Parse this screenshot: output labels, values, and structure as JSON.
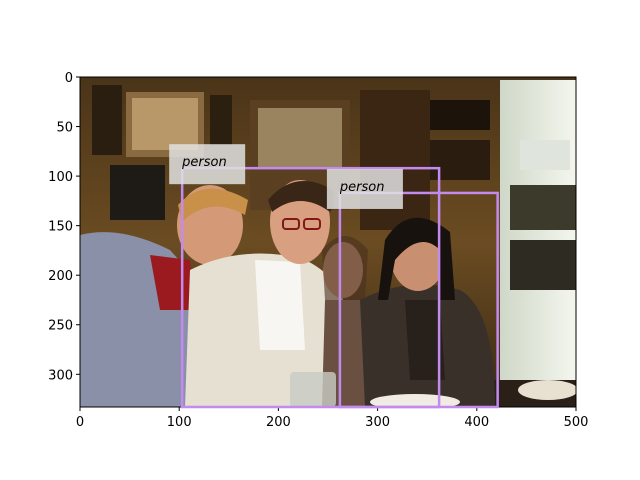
{
  "image": {
    "description_icon": "photo-four-people-in-bar",
    "width_units": 500,
    "height_units": 333
  },
  "axes": {
    "xlim": [
      0,
      500
    ],
    "ylim": [
      333,
      0
    ],
    "x_ticks": [
      0,
      100,
      200,
      300,
      400,
      500
    ],
    "y_ticks": [
      0,
      50,
      100,
      150,
      200,
      250,
      300
    ],
    "grid": false
  },
  "detections": [
    {
      "label": "person",
      "x0": 103,
      "y0": 92,
      "x1": 362,
      "y1": 333,
      "color": "#c38af0"
    },
    {
      "label": "person",
      "x0": 262,
      "y0": 117,
      "x1": 421,
      "y1": 333,
      "color": "#c38af0"
    }
  ],
  "label_background": "#e0e0e0"
}
